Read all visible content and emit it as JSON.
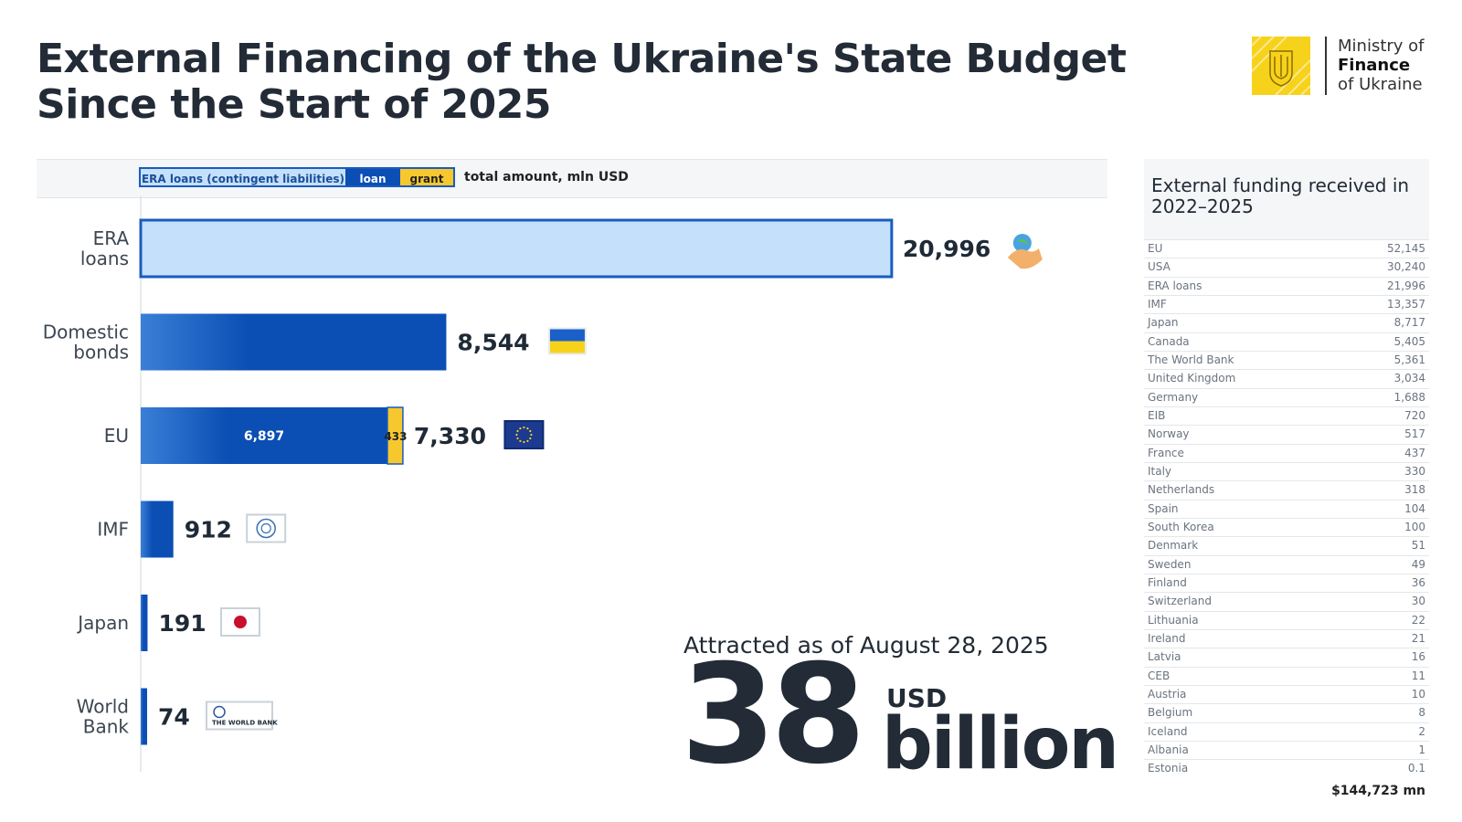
{
  "title": {
    "line1": "External Financing of the Ukraine's State Budget",
    "line2": "Since the Start of 2025"
  },
  "logo": {
    "line1": "Ministry of",
    "line2": "Finance",
    "line3": "of Ukraine"
  },
  "legend": {
    "era": "ERA loans (contingent liabilities)",
    "loan": "loan",
    "grant": "grant",
    "total": "total amount, mln USD"
  },
  "colors": {
    "era_fill": "#c5e0fb",
    "era_border": "#1a5cbf",
    "loan": "#0b4fb5",
    "grant": "#f7c82e"
  },
  "chart_data": {
    "type": "bar",
    "orientation": "horizontal",
    "categories": [
      [
        "ERA",
        "loans"
      ],
      [
        "Domestic",
        "bonds"
      ],
      [
        "EU"
      ],
      [
        "IMF"
      ],
      [
        "Japan"
      ],
      [
        "World",
        "Bank"
      ]
    ],
    "series": [
      {
        "name": "ERA loans (contingent liabilities)",
        "values": [
          20996,
          0,
          0,
          0,
          0,
          0
        ]
      },
      {
        "name": "loan",
        "values": [
          0,
          8544,
          6897,
          912,
          191,
          74
        ]
      },
      {
        "name": "grant",
        "values": [
          0,
          0,
          433,
          0,
          0,
          0
        ]
      }
    ],
    "totals": [
      "20,996",
      "8,544",
      "7,330",
      "912",
      "191",
      "74"
    ],
    "segment_labels": [
      {
        "row": 2,
        "series": "loan",
        "text": "6,897"
      },
      {
        "row": 2,
        "series": "grant",
        "text": "433"
      }
    ],
    "icons": [
      "handshake-globe-icon",
      "ukraine-flag-icon",
      "eu-flag-icon",
      "imf-logo-icon",
      "japan-flag-icon",
      "world-bank-logo-icon"
    ],
    "world_bank_text": "THE WORLD BANK",
    "xlim": [
      0,
      21000
    ],
    "units": "mln USD"
  },
  "stat": {
    "caption": "Attracted as of August 28, 2025",
    "value": "38",
    "currency": "USD",
    "unit": "billion"
  },
  "panel": {
    "title": "External funding received in 2022–2025",
    "rows": [
      {
        "name": "EU",
        "value": "52,145"
      },
      {
        "name": "USA",
        "value": "30,240"
      },
      {
        "name": "ERA loans",
        "value": "21,996"
      },
      {
        "name": "IMF",
        "value": "13,357"
      },
      {
        "name": "Japan",
        "value": "8,717"
      },
      {
        "name": "Canada",
        "value": "5,405"
      },
      {
        "name": "The World Bank",
        "value": "5,361"
      },
      {
        "name": "United Kingdom",
        "value": "3,034"
      },
      {
        "name": "Germany",
        "value": "1,688"
      },
      {
        "name": "EIB",
        "value": "720"
      },
      {
        "name": "Norway",
        "value": "517"
      },
      {
        "name": "France",
        "value": "437"
      },
      {
        "name": "Italy",
        "value": "330"
      },
      {
        "name": "Netherlands",
        "value": "318"
      },
      {
        "name": "Spain",
        "value": "104"
      },
      {
        "name": "South Korea",
        "value": "100"
      },
      {
        "name": "Denmark",
        "value": "51"
      },
      {
        "name": "Sweden",
        "value": "49"
      },
      {
        "name": "Finland",
        "value": "36"
      },
      {
        "name": "Switzerland",
        "value": "30"
      },
      {
        "name": "Lithuania",
        "value": "22"
      },
      {
        "name": "Ireland",
        "value": "21"
      },
      {
        "name": "Latvia",
        "value": "16"
      },
      {
        "name": "CEB",
        "value": "11"
      },
      {
        "name": "Austria",
        "value": "10"
      },
      {
        "name": "Belgium",
        "value": "8"
      },
      {
        "name": "Iceland",
        "value": "2"
      },
      {
        "name": "Albania",
        "value": "1"
      },
      {
        "name": "Estonia",
        "value": "0.1"
      }
    ],
    "total": "$144,723 mn"
  }
}
